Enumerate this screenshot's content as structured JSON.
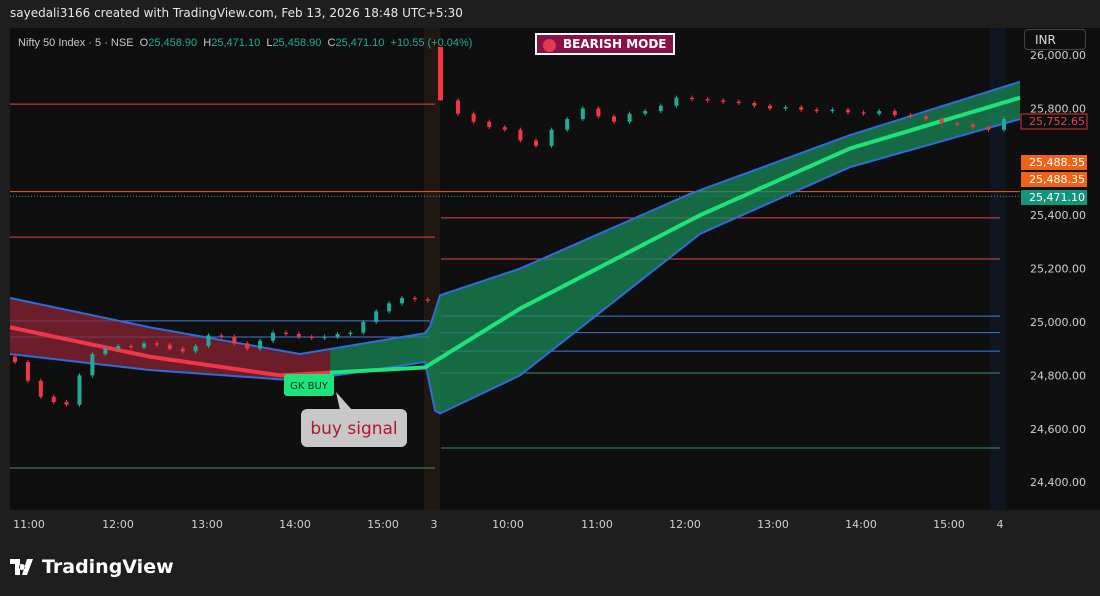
{
  "credit": "sayedali3166 created with TradingView.com, Feb 13, 2026 18:48 UTC+5:30",
  "legend": {
    "symbol": "Nifty 50 Index · 5 · NSE",
    "o_label": "O",
    "o": "25,458.90",
    "h_label": "H",
    "h": "25,471.10",
    "l_label": "L",
    "l": "25,458.90",
    "c_label": "C",
    "c": "25,471.10",
    "change": "+10.55 (+0.04%)"
  },
  "badge": "BEARISH MODE",
  "currency": "INR",
  "signal_label": "GK BUY",
  "annotation": "buy signal",
  "brand": "TradingView",
  "colors": {
    "up": "#22ab94",
    "down": "#f23645",
    "bull_band": "#1a8a55",
    "bear_band": "#8b2433",
    "band_edge": "#2f6bdc",
    "bull_line": "#1ee37a",
    "bear_line": "#f0364a",
    "orange": "#f06316"
  },
  "y_axis": {
    "ticks": [
      "26,000.00",
      "25,800.00",
      "25,400.00",
      "25,200.00",
      "25,000.00",
      "24,800.00",
      "24,600.00",
      "24,400.00"
    ],
    "tick_values": [
      26000,
      25800,
      25400,
      25200,
      25000,
      24800,
      24600,
      24400
    ]
  },
  "price_labels": [
    {
      "text": "25,752.65",
      "value": 25752.65,
      "style": "outline"
    },
    {
      "text": "25,488.35",
      "value": 25488.35,
      "style": "orange"
    },
    {
      "text": "25,488.35",
      "value": 25488.35,
      "style": "orange"
    },
    {
      "text": "25,471.10",
      "value": 25471.1,
      "style": "green"
    }
  ],
  "x_axis": {
    "ticks": [
      "11:00",
      "12:00",
      "13:00",
      "14:00",
      "15:00",
      "3",
      "10:00",
      "11:00",
      "12:00",
      "13:00",
      "14:00",
      "15:00",
      "4"
    ]
  },
  "chart_data": {
    "type": "candlestick",
    "day1_closes": [
      24850,
      24780,
      24720,
      24700,
      24690,
      24800,
      24880,
      24900,
      24910,
      24905,
      24920,
      24915,
      24900,
      24890,
      24910,
      24950,
      24945,
      24920,
      24900,
      24930,
      24960,
      24955,
      24945,
      24940,
      24945,
      24955,
      24960,
      25000,
      25040,
      25070,
      25090,
      25085,
      25080
    ],
    "day2_closes": [
      25830,
      25780,
      25750,
      25730,
      25720,
      25680,
      25660,
      25720,
      25760,
      25800,
      25770,
      25750,
      25780,
      25790,
      25810,
      25840,
      25835,
      25830,
      25825,
      25820,
      25810,
      25800,
      25805,
      25795,
      25790,
      25795,
      25785,
      25780,
      25790,
      25775,
      25770,
      25760,
      25745,
      25740,
      25730,
      25720,
      25760
    ],
    "levels": [
      25816,
      25318,
      25488.35,
      24944,
      25004,
      24453,
      25390,
      25236,
      25022,
      24960,
      24891,
      24809,
      24528
    ]
  }
}
